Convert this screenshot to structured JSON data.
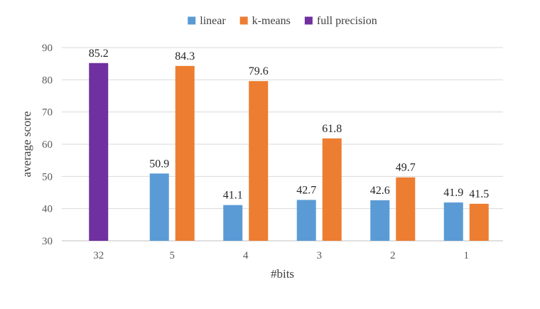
{
  "chart_data": {
    "type": "bar",
    "categories": [
      "32",
      "5",
      "4",
      "3",
      "2",
      "1"
    ],
    "series": [
      {
        "name": "linear",
        "color": "#5b9bd5",
        "values": [
          null,
          50.9,
          41.1,
          42.7,
          42.6,
          41.9
        ]
      },
      {
        "name": "k-means",
        "color": "#ed7d31",
        "values": [
          null,
          84.3,
          79.6,
          61.8,
          49.7,
          41.5
        ]
      },
      {
        "name": "full precision",
        "color": "#7030a0",
        "values": [
          85.2,
          null,
          null,
          null,
          null,
          null
        ]
      }
    ],
    "xlabel": "#bits",
    "ylabel": "average score",
    "ylim": [
      30,
      90
    ],
    "yticks": [
      30,
      40,
      50,
      60,
      70,
      80,
      90
    ],
    "grid": true,
    "legend_position": "top"
  }
}
